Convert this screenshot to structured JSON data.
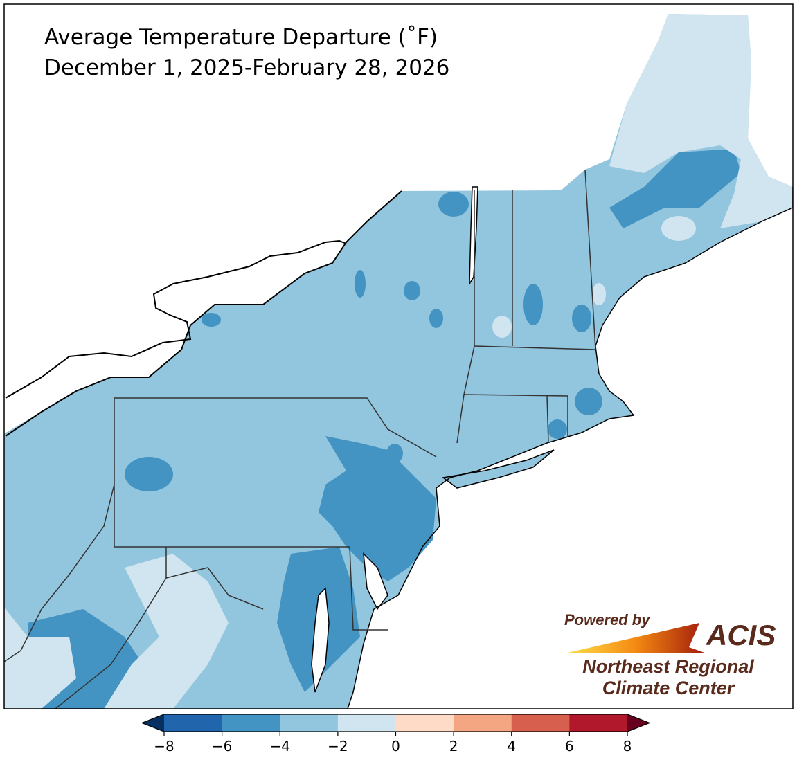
{
  "title": "Average Temperature Departure (˚F)",
  "subtitle": "December 1, 2025-February 28, 2026",
  "colorbar": {
    "vlim": [
      -8,
      8
    ],
    "ticks": [
      {
        "value": -8,
        "label": "−8"
      },
      {
        "value": -6,
        "label": "−6"
      },
      {
        "value": -4,
        "label": "−4"
      },
      {
        "value": -2,
        "label": "−2"
      },
      0,
      2,
      4,
      6,
      8
    ],
    "colors": [
      "#2166ac",
      "#4393c3",
      "#92c5de",
      "#d1e5f0",
      "#fddbc7",
      "#f4a582",
      "#d6604d",
      "#b2182b"
    ],
    "under_color": "#053061",
    "over_color": "#67001f"
  },
  "logo": {
    "powered_by": "Powered by",
    "acis": "ACIS",
    "org_line1": "Northeast Regional",
    "org_line2": "Climate Center"
  }
}
